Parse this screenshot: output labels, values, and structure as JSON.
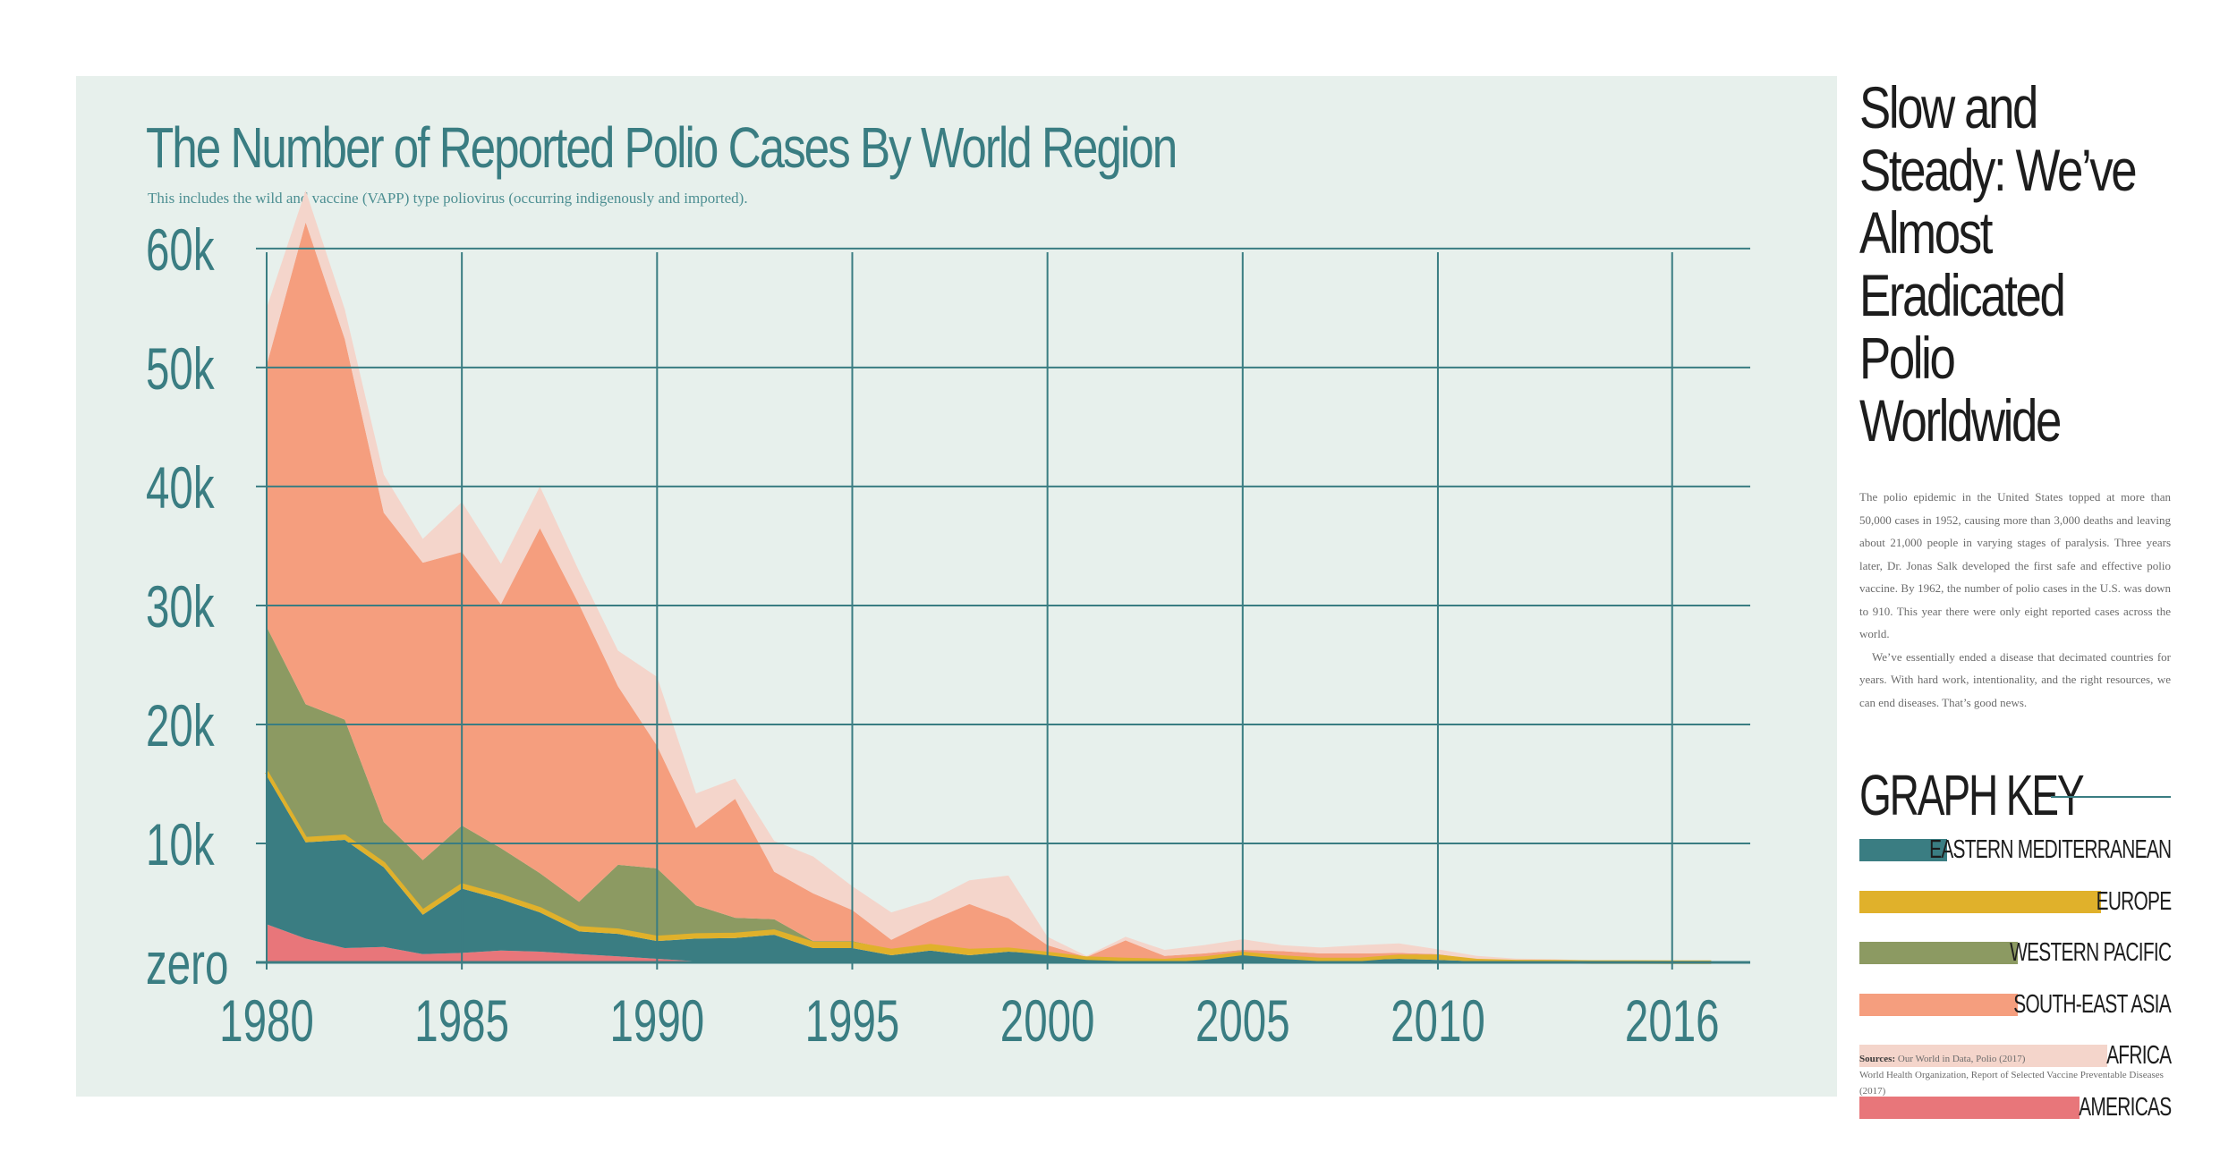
{
  "chart_data": {
    "type": "area",
    "stacked": true,
    "title": "The Number of Reported Polio Cases By World Region",
    "subtitle": "This includes the wild and vaccine (VAPP) type poliovirus (occurring indigenously and imported).",
    "x": [
      1980,
      1981,
      1982,
      1983,
      1984,
      1985,
      1986,
      1987,
      1988,
      1989,
      1990,
      1991,
      1992,
      1993,
      1994,
      1995,
      1996,
      1997,
      1998,
      1999,
      2000,
      2001,
      2002,
      2003,
      2004,
      2005,
      2006,
      2007,
      2008,
      2009,
      2010,
      2011,
      2012,
      2013,
      2014,
      2015,
      2016,
      2017
    ],
    "xticks": [
      1980,
      1985,
      1990,
      1995,
      2000,
      2005,
      2010,
      2016
    ],
    "xtick_labels": [
      "1980",
      "1985",
      "1990",
      "1995",
      "2000",
      "2005",
      "2010",
      "2016"
    ],
    "yticks": [
      0,
      10000,
      20000,
      30000,
      40000,
      50000,
      60000
    ],
    "ytick_labels": [
      "zero",
      "10k",
      "20k",
      "30k",
      "40k",
      "50k",
      "60k"
    ],
    "xlim": [
      1980,
      2018
    ],
    "ylim": [
      0,
      63000
    ],
    "series": [
      {
        "name": "AMERICAS",
        "color": "#e8767a",
        "values": [
          3200,
          2000,
          1200,
          1300,
          700,
          800,
          1000,
          900,
          700,
          500,
          300,
          100,
          50,
          20,
          0,
          0,
          0,
          0,
          0,
          0,
          0,
          0,
          0,
          0,
          0,
          0,
          0,
          0,
          0,
          0,
          0,
          0,
          0,
          0,
          0,
          0,
          0,
          0
        ]
      },
      {
        "name": "EASTERN MEDITERRANEAN",
        "color": "#3a7d82",
        "values": [
          12500,
          8100,
          9100,
          6700,
          3300,
          5400,
          4300,
          3300,
          1900,
          1900,
          1500,
          1900,
          2000,
          2300,
          1200,
          1200,
          600,
          1000,
          600,
          900,
          700,
          300,
          200,
          100,
          300,
          700,
          400,
          200,
          200,
          300,
          200,
          100,
          50,
          30,
          20,
          20,
          10,
          10
        ]
      },
      {
        "name": "EUROPE",
        "color": "#e0b12b",
        "values": [
          300,
          300,
          300,
          300,
          300,
          300,
          300,
          300,
          300,
          300,
          300,
          300,
          300,
          300,
          400,
          400,
          400,
          400,
          400,
          200,
          50,
          50,
          50,
          50,
          50,
          50,
          50,
          50,
          50,
          200,
          300,
          50,
          20,
          20,
          10,
          10,
          10,
          10
        ]
      },
      {
        "name": "WESTERN PACIFIC",
        "color": "#8c9a62",
        "values": [
          12200,
          11300,
          9800,
          3500,
          4300,
          5000,
          4000,
          3000,
          2200,
          5500,
          5800,
          2500,
          1400,
          1000,
          200,
          200,
          100,
          100,
          100,
          0,
          0,
          0,
          0,
          0,
          0,
          0,
          0,
          0,
          0,
          0,
          0,
          0,
          0,
          0,
          0,
          0,
          0,
          0
        ]
      },
      {
        "name": "SOUTH-EAST ASIA",
        "color": "#f59e7e",
        "values": [
          22000,
          40500,
          32000,
          26000,
          25000,
          23000,
          20500,
          29000,
          25000,
          15000,
          10300,
          6500,
          10000,
          4000,
          4000,
          2600,
          800,
          2000,
          3800,
          2600,
          700,
          100,
          1600,
          400,
          400,
          300,
          500,
          500,
          500,
          300,
          200,
          100,
          50,
          20,
          10,
          10,
          0,
          0
        ]
      },
      {
        "name": "AFRICA",
        "color": "#f4d5cb",
        "values": [
          4800,
          2700,
          2500,
          3200,
          2000,
          4200,
          3400,
          3500,
          2800,
          3000,
          5800,
          2900,
          1700,
          2600,
          3100,
          2000,
          2300,
          1700,
          2000,
          3600,
          700,
          100,
          300,
          500,
          700,
          900,
          500,
          500,
          700,
          800,
          400,
          300,
          200,
          200,
          100,
          50,
          20,
          20
        ]
      }
    ]
  },
  "sidebar": {
    "headline": "Slow and Steady: We’ve Almost Eradicated Polio Worldwide",
    "body_1": "The polio epidemic in the United States topped at more than 50,000 cases in 1952, causing more than 3,000 deaths and leaving about 21,000 people in varying stages of paralysis. Three years later, Dr. Jonas Salk developed the first safe and effective polio vaccine. By 1962, the number of polio cases in the U.S. was down to 910. This year there were only eight reported cases across the world.",
    "body_2": "We’ve essentially ended a disease that decimated countries for years. With hard work, intentionality, and the right resources, we can end diseases. That’s good news.",
    "key_title": "GRAPH KEY",
    "legend": [
      {
        "label": "EASTERN MEDITERRANEAN",
        "color": "#3a7d82"
      },
      {
        "label": "EUROPE",
        "color": "#e0b12b"
      },
      {
        "label": "WESTERN PACIFIC",
        "color": "#8c9a62"
      },
      {
        "label": "SOUTH-EAST ASIA",
        "color": "#f59e7e"
      },
      {
        "label": "AFRICA",
        "color": "#f4d5cb"
      },
      {
        "label": "AMERICAS",
        "color": "#e8767a"
      }
    ],
    "sources_label": "Sources:",
    "sources_1": "Our World in Data, Polio (2017)",
    "sources_2": "World Health Organization, Report of Selected Vaccine Preventable Diseases (2017)"
  }
}
